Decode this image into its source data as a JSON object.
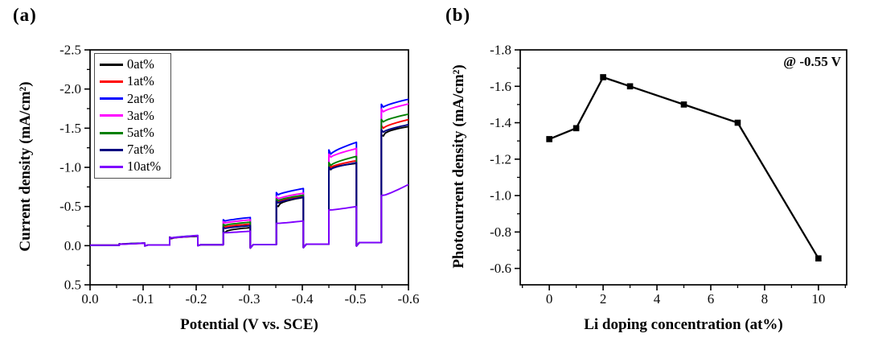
{
  "panels": {
    "a": {
      "tag": "(a)"
    },
    "b": {
      "tag": "(b)"
    }
  },
  "chart_data": [
    {
      "panel": "a",
      "type": "line",
      "description": "chopped-light linear sweep voltammetry, light on/off steps",
      "xlabel": "Potential (V vs. SCE)",
      "ylabel": "Current density (mA/cm²)",
      "xlim": [
        0.0,
        -0.6
      ],
      "ylim": [
        -2.5,
        0.5
      ],
      "y_axis_inverted": true,
      "grid": false,
      "legend_position": "top-left-inside",
      "x_major_ticks": [
        0.0,
        -0.1,
        -0.2,
        -0.3,
        -0.4,
        -0.5,
        -0.6
      ],
      "x_tick_labels": [
        "0.0",
        "-0.1",
        "-0.2",
        "-0.3",
        "-0.4",
        "-0.5",
        "-0.6"
      ],
      "x_minor_ticks": [
        -0.05,
        -0.15,
        -0.25,
        -0.35,
        -0.45,
        -0.55
      ],
      "y_major_ticks": [
        -2.5,
        -2.0,
        -1.5,
        -1.0,
        -0.5,
        0.0,
        0.5
      ],
      "y_tick_labels": [
        "-2.5",
        "-2.0",
        "-1.5",
        "-1.0",
        "-0.5",
        "0.0",
        "0.5"
      ],
      "y_minor_ticks": [
        -2.25,
        -1.75,
        -1.25,
        -0.75,
        -0.25,
        0.25
      ],
      "light_on_windows": [
        [
          -0.055,
          -0.103
        ],
        [
          -0.15,
          -0.203
        ],
        [
          -0.251,
          -0.302
        ],
        [
          -0.351,
          -0.402
        ],
        [
          -0.45,
          -0.502
        ],
        [
          -0.549,
          -0.6
        ]
      ],
      "off_dark_levels": [
        -0.005,
        -0.008,
        -0.012,
        -0.015,
        -0.02,
        -0.04
      ],
      "series": [
        {
          "name": "0at%",
          "color": "#000000",
          "steps": [
            [
              -0.018,
              -0.03
            ],
            [
              -0.09,
              -0.12
            ],
            [
              -0.17,
              -0.23
            ],
            [
              -0.5,
              -0.615
            ],
            [
              -0.97,
              -1.05
            ],
            [
              -1.4,
              -1.52
            ]
          ]
        },
        {
          "name": "1at%",
          "color": "#ff0000",
          "steps": [
            [
              -0.018,
              -0.03
            ],
            [
              -0.093,
              -0.123
            ],
            [
              -0.24,
              -0.275
            ],
            [
              -0.56,
              -0.63
            ],
            [
              -1.0,
              -1.085
            ],
            [
              -1.5,
              -1.61
            ]
          ]
        },
        {
          "name": "2at%",
          "color": "#0000ff",
          "steps": [
            [
              -0.02,
              -0.034
            ],
            [
              -0.1,
              -0.13
            ],
            [
              -0.315,
              -0.36
            ],
            [
              -0.65,
              -0.73
            ],
            [
              -1.17,
              -1.32
            ],
            [
              -1.77,
              -1.87
            ]
          ]
        },
        {
          "name": "3at%",
          "color": "#ff00ff",
          "steps": [
            [
              -0.02,
              -0.033
            ],
            [
              -0.098,
              -0.127
            ],
            [
              -0.29,
              -0.33
            ],
            [
              -0.6,
              -0.67
            ],
            [
              -1.13,
              -1.24
            ],
            [
              -1.71,
              -1.81
            ]
          ]
        },
        {
          "name": "5at%",
          "color": "#008000",
          "steps": [
            [
              -0.019,
              -0.032
            ],
            [
              -0.096,
              -0.125
            ],
            [
              -0.26,
              -0.3
            ],
            [
              -0.575,
              -0.645
            ],
            [
              -1.025,
              -1.14
            ],
            [
              -1.58,
              -1.68
            ]
          ]
        },
        {
          "name": "7at%",
          "color": "#000080",
          "steps": [
            [
              -0.018,
              -0.031
            ],
            [
              -0.094,
              -0.124
            ],
            [
              -0.22,
              -0.255
            ],
            [
              -0.545,
              -0.62
            ],
            [
              -0.975,
              -1.06
            ],
            [
              -1.45,
              -1.545
            ]
          ]
        },
        {
          "name": "10at%",
          "color": "#7f00ff",
          "steps": [
            [
              -0.018,
              -0.031
            ],
            [
              -0.1,
              -0.13
            ],
            [
              -0.165,
              -0.185
            ],
            [
              -0.285,
              -0.315
            ],
            [
              -0.455,
              -0.5
            ],
            [
              -0.64,
              -0.78
            ]
          ]
        }
      ]
    },
    {
      "panel": "b",
      "type": "line",
      "marker": "square",
      "color": "#000000",
      "annotation": "@ -0.55 V",
      "xlabel": "Li doping concentration (at%)",
      "ylabel": "Photocurrent density (mA/cm²)",
      "x": [
        0,
        1,
        2,
        3,
        5,
        7,
        10
      ],
      "y": [
        -1.31,
        -1.37,
        -1.65,
        -1.6,
        -1.5,
        -1.4,
        -0.655
      ],
      "xlim": [
        -1.08,
        11.05
      ],
      "ylim": [
        -1.8,
        -0.51
      ],
      "y_axis_inverted": true,
      "grid": false,
      "x_major_ticks": [
        0,
        2,
        4,
        6,
        8,
        10
      ],
      "x_tick_labels": [
        "0",
        "2",
        "4",
        "6",
        "8",
        "10"
      ],
      "x_minor_ticks": [
        -1,
        1,
        3,
        5,
        7,
        9,
        11
      ],
      "y_major_ticks": [
        -1.8,
        -1.6,
        -1.4,
        -1.2,
        -1.0,
        -0.8,
        -0.6
      ],
      "y_tick_labels": [
        "-1.8",
        "-1.6",
        "-1.4",
        "-1.2",
        "-1.0",
        "-0.8",
        "-0.6"
      ],
      "y_minor_ticks": [
        -1.7,
        -1.5,
        -1.3,
        -1.1,
        -0.9,
        -0.7
      ]
    }
  ]
}
